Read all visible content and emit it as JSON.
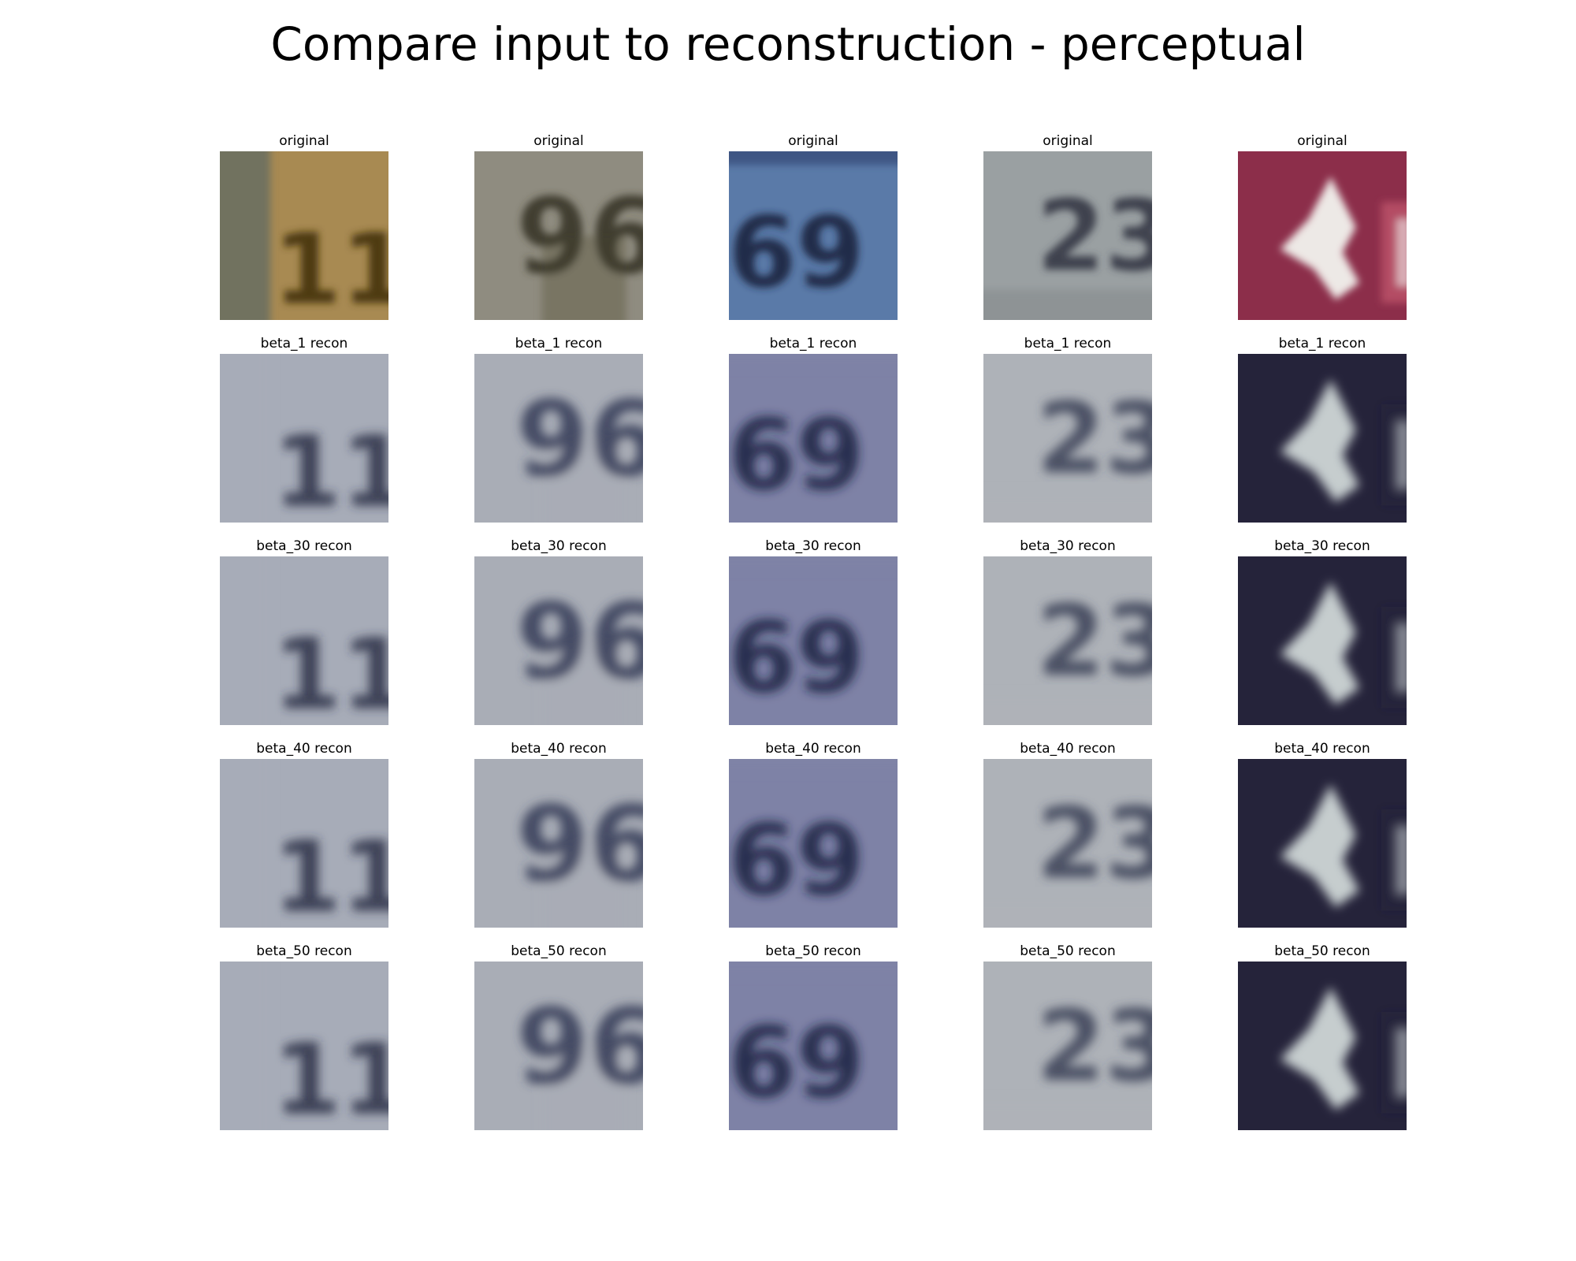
{
  "title": "Compare input to reconstruction - perceptual",
  "row_labels": [
    "original",
    "beta_1 recon",
    "beta_30 recon",
    "beta_40 recon",
    "beta_50 recon"
  ],
  "columns": [
    {
      "digits": "11",
      "original_colors": [
        "#a88a52",
        "#6b7060",
        "#4a3510"
      ],
      "recon_bg": "#a7acb8",
      "recon_ink": "#2a2f45",
      "recon_dark": false
    },
    {
      "digits": "96",
      "original_colors": [
        "#8f8c80",
        "#77725f",
        "#3d3a2c"
      ],
      "recon_bg": "#a9adb6",
      "recon_ink": "#333a55",
      "recon_dark": false
    },
    {
      "digits": "69",
      "original_colors": [
        "#5a7aa8",
        "#3a5180",
        "#1e2a45"
      ],
      "recon_bg": "#7e82a6",
      "recon_ink": "#1c2040",
      "recon_dark": false
    },
    {
      "digits": "23",
      "original_colors": [
        "#9aa0a2",
        "#8d9294",
        "#3a3e4a"
      ],
      "recon_bg": "#aeb2b8",
      "recon_ink": "#3a3f55",
      "recon_dark": false
    },
    {
      "digits": "",
      "original_colors": [
        "#8c2e4a",
        "#b84f66",
        "#f2f2ee"
      ],
      "recon_bg": "#25233a",
      "recon_ink": "#cfd6d6",
      "recon_dark": true
    }
  ]
}
